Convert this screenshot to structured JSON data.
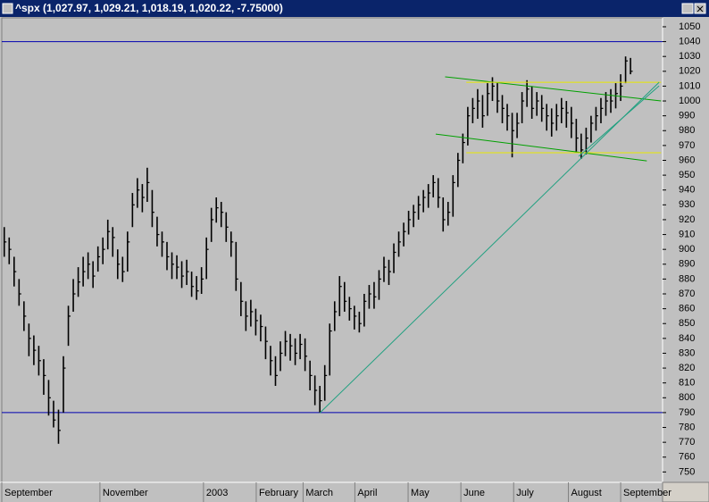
{
  "chart_data": {
    "type": "ohlc",
    "title": "^spx (1,027.97, 1,029.21, 1,018.19, 1,020.22, -7.75000)",
    "color": "#000000",
    "xlim": [
      0,
      134
    ],
    "xticks": [
      {
        "value": 0,
        "label": "September"
      },
      {
        "value": 19.9,
        "label": "November"
      },
      {
        "value": 40.9,
        "label": "2003"
      },
      {
        "value": 51.6,
        "label": "February"
      },
      {
        "value": 61.1,
        "label": "March"
      },
      {
        "value": 71.6,
        "label": "April"
      },
      {
        "value": 82.4,
        "label": "May"
      },
      {
        "value": 93.1,
        "label": "June"
      },
      {
        "value": 103.8,
        "label": "July"
      },
      {
        "value": 114.9,
        "label": "August"
      },
      {
        "value": 125.5,
        "label": "September"
      }
    ],
    "ylim": [
      743,
      1056
    ],
    "yticks": [
      750,
      760,
      770,
      780,
      790,
      800,
      810,
      820,
      830,
      840,
      850,
      860,
      870,
      880,
      890,
      900,
      910,
      920,
      930,
      940,
      950,
      960,
      970,
      980,
      990,
      1000,
      1010,
      1020,
      1030,
      1040,
      1050
    ],
    "high": [
      915,
      908,
      895,
      880,
      865,
      850,
      842,
      835,
      826,
      812,
      798,
      792,
      828,
      862,
      880,
      888,
      895,
      898,
      892,
      902,
      908,
      920,
      915,
      900,
      895,
      912,
      938,
      948,
      944,
      955,
      940,
      922,
      912,
      905,
      898,
      896,
      892,
      893,
      885,
      882,
      888,
      908,
      928,
      935,
      932,
      925,
      912,
      905,
      878,
      865,
      866,
      860,
      856,
      848,
      835,
      828,
      838,
      845,
      843,
      840,
      843,
      840,
      825,
      815,
      808,
      822,
      850,
      865,
      882,
      878,
      868,
      862,
      858,
      870,
      876,
      878,
      886,
      895,
      893,
      904,
      912,
      918,
      926,
      930,
      936,
      940,
      944,
      950,
      948,
      935,
      932,
      950,
      965,
      978,
      996,
      1002,
      1008,
      1004,
      1012,
      1016,
      1012,
      1004,
      998,
      992,
      992,
      1006,
      1014,
      1010,
      1006,
      1004,
      998,
      995,
      998,
      1002,
      1000,
      996,
      988,
      978,
      982,
      990,
      996,
      1002,
      1006,
      1008,
      1012,
      1018,
      1030,
      1029
    ],
    "low": [
      895,
      890,
      875,
      862,
      845,
      828,
      822,
      815,
      802,
      788,
      780,
      769,
      790,
      835,
      858,
      868,
      875,
      880,
      874,
      885,
      890,
      900,
      895,
      880,
      878,
      885,
      915,
      928,
      925,
      932,
      915,
      902,
      895,
      886,
      880,
      880,
      874,
      876,
      868,
      866,
      870,
      880,
      905,
      918,
      915,
      905,
      895,
      872,
      855,
      845,
      848,
      842,
      838,
      826,
      815,
      808,
      818,
      828,
      825,
      822,
      826,
      818,
      805,
      795,
      790,
      798,
      815,
      845,
      855,
      858,
      852,
      846,
      844,
      848,
      860,
      860,
      866,
      878,
      876,
      884,
      895,
      902,
      910,
      915,
      920,
      925,
      928,
      935,
      928,
      912,
      916,
      922,
      942,
      958,
      970,
      985,
      988,
      982,
      990,
      1000,
      992,
      985,
      980,
      962,
      975,
      985,
      996,
      988,
      990,
      986,
      980,
      976,
      980,
      985,
      982,
      975,
      966,
      961,
      964,
      972,
      980,
      985,
      990,
      992,
      995,
      1000,
      1012,
      1018
    ],
    "close": [
      905,
      900,
      885,
      870,
      855,
      840,
      832,
      825,
      815,
      800,
      785,
      778,
      820,
      855,
      870,
      878,
      885,
      890,
      882,
      895,
      900,
      912,
      908,
      890,
      885,
      905,
      930,
      940,
      935,
      945,
      925,
      910,
      905,
      895,
      890,
      888,
      882,
      885,
      875,
      872,
      880,
      900,
      920,
      928,
      925,
      915,
      905,
      880,
      865,
      855,
      858,
      852,
      848,
      838,
      825,
      815,
      830,
      838,
      835,
      830,
      836,
      828,
      815,
      805,
      798,
      815,
      845,
      858,
      875,
      865,
      860,
      855,
      850,
      865,
      870,
      868,
      880,
      888,
      885,
      898,
      905,
      912,
      920,
      925,
      930,
      935,
      938,
      945,
      935,
      920,
      925,
      945,
      960,
      972,
      990,
      995,
      1000,
      990,
      1005,
      1010,
      1000,
      995,
      990,
      980,
      985,
      1000,
      1008,
      995,
      1000,
      995,
      990,
      985,
      990,
      995,
      992,
      985,
      975,
      967,
      975,
      985,
      990,
      995,
      1000,
      1000,
      1005,
      1010,
      1027,
      1020
    ],
    "hlines": [
      {
        "value": 1040,
        "color": "#0000b0"
      },
      {
        "value": 790,
        "color": "#0000b0"
      }
    ],
    "lines": [
      {
        "color": "#00a000",
        "points": [
          [
            89.9,
            1016.3
          ],
          [
            133.7,
            1000.0
          ]
        ]
      },
      {
        "color": "#00a000",
        "points": [
          [
            88.0,
            977.7
          ],
          [
            130.8,
            959.6
          ]
        ]
      },
      {
        "color": "#e8e800",
        "points": [
          [
            94.2,
            1012.6
          ],
          [
            133.7,
            1012.6
          ]
        ]
      },
      {
        "color": "#e8e800",
        "points": [
          [
            94.2,
            965.1
          ],
          [
            133.7,
            965.1
          ]
        ]
      },
      {
        "color": "#20a080",
        "points": [
          [
            64.5,
            789.8
          ],
          [
            133.3,
            1012.6
          ]
        ]
      },
      {
        "color": "#20a080",
        "points": [
          [
            117.0,
            962.7
          ],
          [
            133.3,
            1010.2
          ]
        ]
      }
    ]
  }
}
